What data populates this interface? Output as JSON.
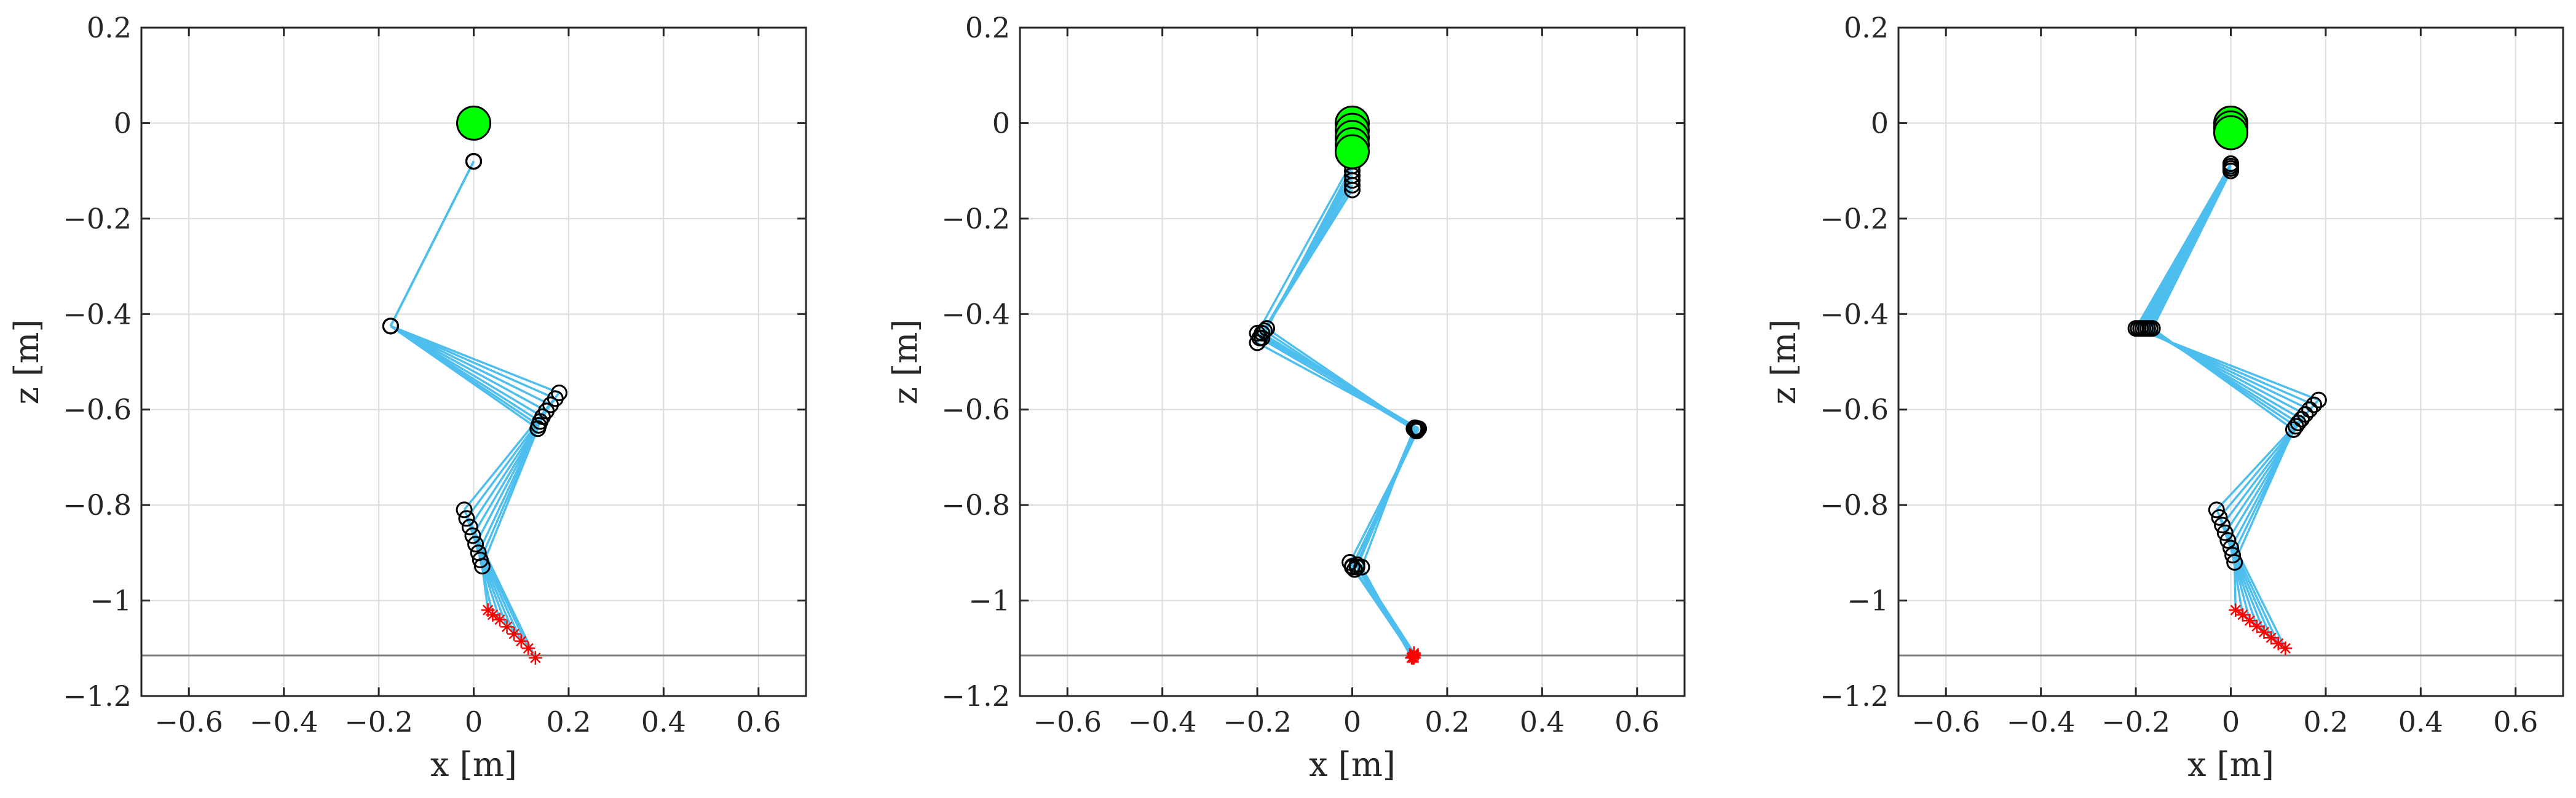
{
  "colors": {
    "link": "#4DBEEE",
    "joint_edge": "#000000",
    "hip_fill": "#00FF00",
    "foot_marker": "#FF0000",
    "ground": "#7F7F7F",
    "grid": "#DCDCDC",
    "axes": "#262626"
  },
  "chart_data": [
    {
      "type": "scatter",
      "title": "",
      "xlabel": "x [m]",
      "ylabel": "z [m]",
      "xlim": [
        -0.7,
        0.7
      ],
      "ylim": [
        -1.2,
        0.2
      ],
      "xticks": [
        -0.6,
        -0.4,
        -0.2,
        0,
        0.2,
        0.4,
        0.6
      ],
      "yticks": [
        -1.2,
        -1,
        -0.8,
        -0.6,
        -0.4,
        -0.2,
        0,
        0.2
      ],
      "xtick_labels": [
        "−0.6",
        "−0.4",
        "−0.2",
        "0",
        "0.2",
        "0.4",
        "0.6"
      ],
      "ytick_labels": [
        "−1.2",
        "−1",
        "−0.8",
        "−0.6",
        "−0.4",
        "−0.2",
        "0",
        "0.2"
      ],
      "grid": true,
      "ground_z": -1.115,
      "hips": [
        [
          0,
          0
        ]
      ],
      "frames": [
        [
          [
            0,
            -0.08
          ],
          [
            -0.175,
            -0.425
          ],
          [
            0.18,
            -0.565
          ],
          [
            -0.02,
            -0.81
          ],
          [
            0.13,
            -1.12
          ]
        ],
        [
          [
            0,
            -0.08
          ],
          [
            -0.175,
            -0.425
          ],
          [
            0.172,
            -0.577
          ],
          [
            -0.015,
            -0.828
          ],
          [
            0.115,
            -1.1
          ]
        ],
        [
          [
            0,
            -0.08
          ],
          [
            -0.175,
            -0.425
          ],
          [
            0.162,
            -0.59
          ],
          [
            -0.008,
            -0.846
          ],
          [
            0.1,
            -1.085
          ]
        ],
        [
          [
            0,
            -0.08
          ],
          [
            -0.175,
            -0.425
          ],
          [
            0.153,
            -0.603
          ],
          [
            -0.002,
            -0.864
          ],
          [
            0.085,
            -1.07
          ]
        ],
        [
          [
            0,
            -0.08
          ],
          [
            -0.175,
            -0.425
          ],
          [
            0.145,
            -0.615
          ],
          [
            0.004,
            -0.882
          ],
          [
            0.07,
            -1.055
          ]
        ],
        [
          [
            0,
            -0.08
          ],
          [
            -0.175,
            -0.425
          ],
          [
            0.14,
            -0.625
          ],
          [
            0.01,
            -0.9
          ],
          [
            0.055,
            -1.04
          ]
        ],
        [
          [
            0,
            -0.08
          ],
          [
            -0.175,
            -0.425
          ],
          [
            0.137,
            -0.633
          ],
          [
            0.014,
            -0.915
          ],
          [
            0.04,
            -1.03
          ]
        ],
        [
          [
            0,
            -0.08
          ],
          [
            -0.175,
            -0.425
          ],
          [
            0.135,
            -0.64
          ],
          [
            0.018,
            -0.928
          ],
          [
            0.03,
            -1.02
          ]
        ]
      ]
    },
    {
      "type": "scatter",
      "title": "",
      "xlabel": "x [m]",
      "ylabel": "z [m]",
      "xlim": [
        -0.7,
        0.7
      ],
      "ylim": [
        -1.2,
        0.2
      ],
      "xticks": [
        -0.6,
        -0.4,
        -0.2,
        0,
        0.2,
        0.4,
        0.6
      ],
      "yticks": [
        -1.2,
        -1,
        -0.8,
        -0.6,
        -0.4,
        -0.2,
        0,
        0.2
      ],
      "xtick_labels": [
        "−0.6",
        "−0.4",
        "−0.2",
        "0",
        "0.2",
        "0.4",
        "0.6"
      ],
      "ytick_labels": [
        "−1.2",
        "−1",
        "−0.8",
        "−0.6",
        "−0.4",
        "−0.2",
        "0",
        "0.2"
      ],
      "grid": true,
      "ground_z": -1.115,
      "hips": [
        [
          0,
          0
        ],
        [
          0,
          -0.015
        ],
        [
          0,
          -0.03
        ],
        [
          0,
          -0.045
        ],
        [
          0,
          -0.06
        ]
      ],
      "frames": [
        [
          [
            0,
            -0.08
          ],
          [
            -0.2,
            -0.44
          ],
          [
            0.14,
            -0.64
          ],
          [
            0.0,
            -0.93
          ],
          [
            0.13,
            -1.12
          ]
        ],
        [
          [
            0,
            -0.09
          ],
          [
            -0.19,
            -0.45
          ],
          [
            0.135,
            -0.645
          ],
          [
            0.01,
            -0.925
          ],
          [
            0.13,
            -1.11
          ]
        ],
        [
          [
            0,
            -0.1
          ],
          [
            -0.18,
            -0.43
          ],
          [
            0.13,
            -0.64
          ],
          [
            0.02,
            -0.93
          ],
          [
            0.125,
            -1.12
          ]
        ],
        [
          [
            0,
            -0.11
          ],
          [
            -0.2,
            -0.46
          ],
          [
            0.138,
            -0.642
          ],
          [
            -0.005,
            -0.92
          ],
          [
            0.13,
            -1.115
          ]
        ],
        [
          [
            0,
            -0.12
          ],
          [
            -0.19,
            -0.44
          ],
          [
            0.132,
            -0.638
          ],
          [
            0.005,
            -0.935
          ],
          [
            0.128,
            -1.118
          ]
        ],
        [
          [
            0,
            -0.13
          ],
          [
            -0.185,
            -0.435
          ],
          [
            0.136,
            -0.645
          ],
          [
            0.0,
            -0.928
          ],
          [
            0.13,
            -1.113
          ]
        ],
        [
          [
            0,
            -0.14
          ],
          [
            -0.195,
            -0.45
          ],
          [
            0.134,
            -0.64
          ],
          [
            0.01,
            -0.93
          ],
          [
            0.127,
            -1.12
          ]
        ]
      ]
    },
    {
      "type": "scatter",
      "title": "",
      "xlabel": "x [m]",
      "ylabel": "z [m]",
      "xlim": [
        -0.7,
        0.7
      ],
      "ylim": [
        -1.2,
        0.2
      ],
      "xticks": [
        -0.6,
        -0.4,
        -0.2,
        0,
        0.2,
        0.4,
        0.6
      ],
      "yticks": [
        -1.2,
        -1,
        -0.8,
        -0.6,
        -0.4,
        -0.2,
        0,
        0.2
      ],
      "xtick_labels": [
        "−0.6",
        "−0.4",
        "−0.2",
        "0",
        "0.2",
        "0.4",
        "0.6"
      ],
      "ytick_labels": [
        "−1.2",
        "−1",
        "−0.8",
        "−0.6",
        "−0.4",
        "−0.2",
        "0",
        "0.2"
      ],
      "grid": true,
      "ground_z": -1.115,
      "hips": [
        [
          0,
          0
        ],
        [
          0,
          -0.01
        ],
        [
          0,
          -0.02
        ]
      ],
      "frames": [
        [
          [
            0,
            -0.085
          ],
          [
            -0.2,
            -0.43
          ],
          [
            0.185,
            -0.58
          ],
          [
            -0.03,
            -0.81
          ],
          [
            0.115,
            -1.1
          ]
        ],
        [
          [
            0,
            -0.09
          ],
          [
            -0.195,
            -0.43
          ],
          [
            0.175,
            -0.59
          ],
          [
            -0.024,
            -0.826
          ],
          [
            0.1,
            -1.09
          ]
        ],
        [
          [
            0,
            -0.095
          ],
          [
            -0.19,
            -0.43
          ],
          [
            0.166,
            -0.6
          ],
          [
            -0.018,
            -0.842
          ],
          [
            0.085,
            -1.078
          ]
        ],
        [
          [
            0,
            -0.1
          ],
          [
            -0.185,
            -0.43
          ],
          [
            0.157,
            -0.61
          ],
          [
            -0.012,
            -0.858
          ],
          [
            0.07,
            -1.066
          ]
        ],
        [
          [
            0,
            -0.085
          ],
          [
            -0.18,
            -0.43
          ],
          [
            0.149,
            -0.62
          ],
          [
            -0.006,
            -0.874
          ],
          [
            0.055,
            -1.054
          ]
        ],
        [
          [
            0,
            -0.09
          ],
          [
            -0.175,
            -0.43
          ],
          [
            0.142,
            -0.628
          ],
          [
            0.0,
            -0.89
          ],
          [
            0.04,
            -1.042
          ]
        ],
        [
          [
            0,
            -0.095
          ],
          [
            -0.17,
            -0.43
          ],
          [
            0.137,
            -0.635
          ],
          [
            0.004,
            -0.905
          ],
          [
            0.025,
            -1.03
          ]
        ],
        [
          [
            0,
            -0.1
          ],
          [
            -0.165,
            -0.43
          ],
          [
            0.132,
            -0.642
          ],
          [
            0.008,
            -0.92
          ],
          [
            0.01,
            -1.02
          ]
        ]
      ]
    }
  ]
}
